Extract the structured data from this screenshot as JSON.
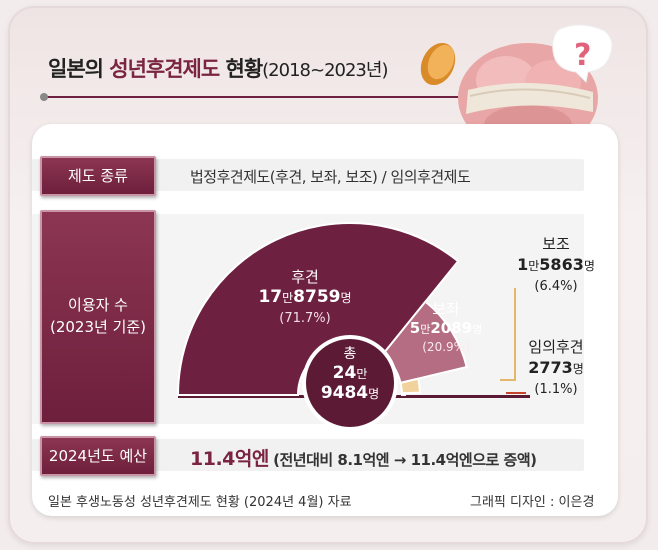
{
  "header": {
    "title_prefix": "일본의",
    "title_highlight": "성년후견제도",
    "title_suffix": "현황",
    "title_years": "(2018~2023년)"
  },
  "rows": {
    "type_label": "제도 종류",
    "type_value": "법정후견제도(후견, 보좌, 보조) / 임의후견제도",
    "users_label_1": "이용자 수",
    "users_label_2": "(2023년 기준)",
    "budget_label": "2024년도 예산",
    "budget_main": "11.4억엔",
    "budget_detail": "(전년대비 8.1억엔 → 11.4억엔으로 증액)"
  },
  "chart_data": {
    "type": "pie",
    "series": [
      {
        "name": "후견",
        "count_a": "17",
        "unit_a": "만",
        "count_b": "8759",
        "unit_b": "명",
        "percent_label": "(71.7%)",
        "value": 71.7,
        "color": "#6e2040"
      },
      {
        "name": "보좌",
        "count_a": "5",
        "unit_a": "만",
        "count_b": "2089",
        "unit_b": "명",
        "percent_label": "(20.9%)",
        "value": 20.9,
        "color": "#b46d83"
      },
      {
        "name": "보조",
        "count_a": "1",
        "unit_a": "만",
        "count_b": "5863",
        "unit_b": "명",
        "percent_label": "(6.4%)",
        "value": 6.4,
        "color": "#f1d29c"
      },
      {
        "name": "임의후견",
        "count_a": "",
        "unit_a": "",
        "count_b": "2773",
        "unit_b": "명",
        "percent_label": "(1.1%)",
        "value": 1.1,
        "color": "#c8442e"
      }
    ],
    "total": {
      "label": "총",
      "line1": "24",
      "line1_unit": "만",
      "line2": "9484",
      "line2_unit": "명"
    }
  },
  "footer": {
    "source": "일본 후생노동성 성년후견제도 현황 (2024년 4월) 자료",
    "credit": "그래픽 디자인 : 이은경"
  }
}
